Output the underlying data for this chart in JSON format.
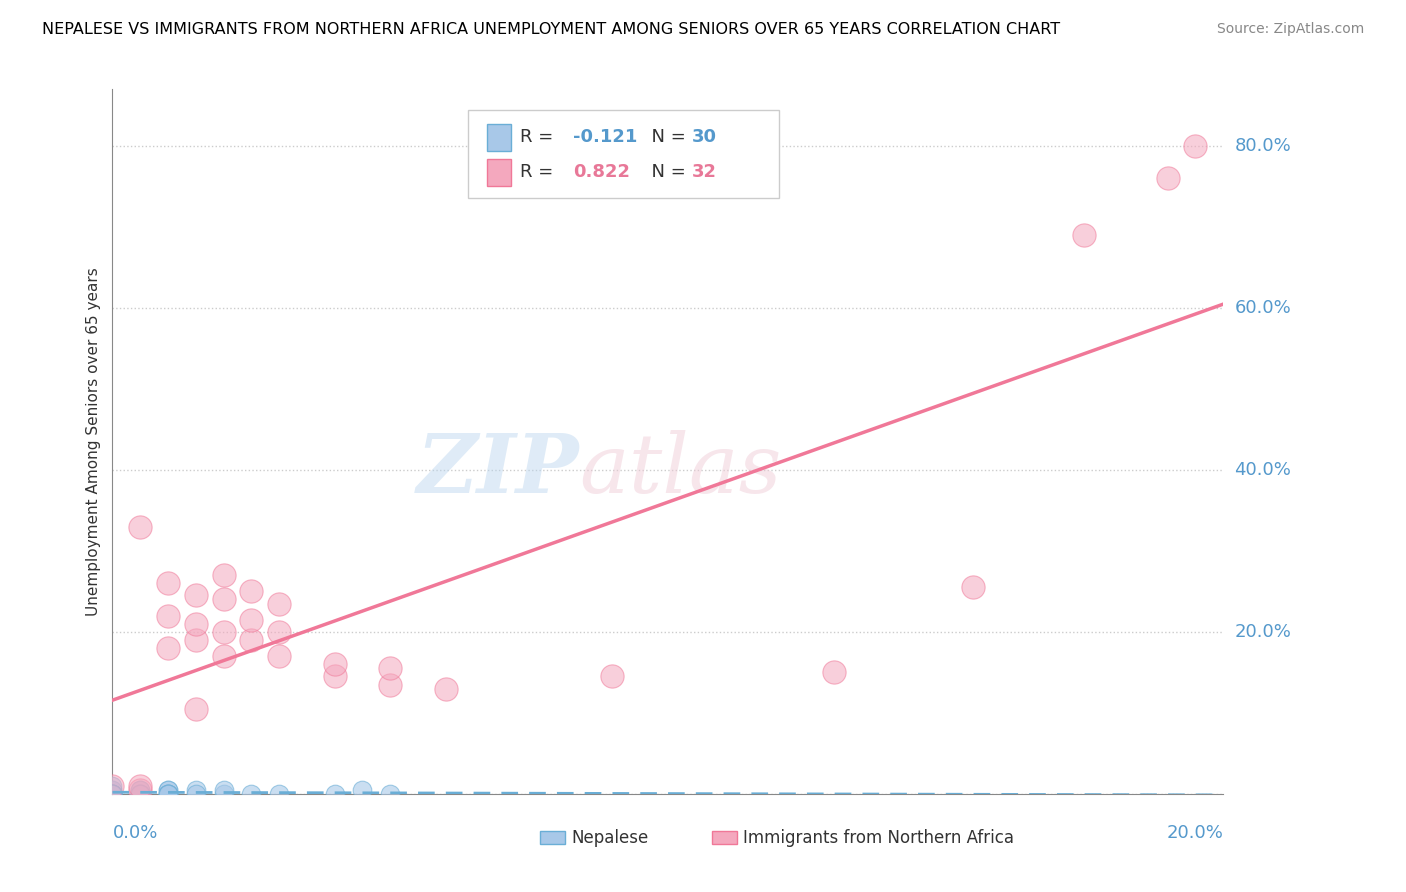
{
  "title": "NEPALESE VS IMMIGRANTS FROM NORTHERN AFRICA UNEMPLOYMENT AMONG SENIORS OVER 65 YEARS CORRELATION CHART",
  "source": "Source: ZipAtlas.com",
  "ylabel": "Unemployment Among Seniors over 65 years",
  "xlim": [
    0.0,
    0.2
  ],
  "ylim": [
    0.0,
    0.87
  ],
  "yticks": [
    0.0,
    0.2,
    0.4,
    0.6,
    0.8
  ],
  "ytick_labels": [
    "",
    "20.0%",
    "40.0%",
    "60.0%",
    "80.0%"
  ],
  "blue_color": "#a8c8e8",
  "pink_color": "#f4a8be",
  "blue_line_color": "#6aaed6",
  "pink_line_color": "#f07898",
  "nepalese_x": [
    0.0,
    0.0,
    0.0,
    0.0,
    0.0,
    0.0,
    0.0,
    0.005,
    0.005,
    0.005,
    0.005,
    0.005,
    0.01,
    0.01,
    0.01,
    0.01,
    0.01,
    0.015,
    0.015,
    0.02,
    0.02,
    0.025,
    0.03,
    0.04,
    0.045,
    0.05,
    0.0,
    0.0,
    0.005,
    0.01
  ],
  "nepalese_y": [
    0.0,
    0.005,
    0.005,
    0.01,
    0.0,
    0.0,
    0.0,
    0.0,
    0.005,
    0.005,
    0.0,
    0.0,
    0.005,
    0.005,
    0.0,
    0.0,
    0.0,
    0.005,
    0.0,
    0.0,
    0.005,
    0.0,
    0.0,
    0.0,
    0.005,
    0.0,
    0.0,
    0.0,
    0.0,
    0.0
  ],
  "africa_x": [
    0.0,
    0.005,
    0.005,
    0.01,
    0.01,
    0.01,
    0.015,
    0.015,
    0.015,
    0.02,
    0.02,
    0.02,
    0.02,
    0.025,
    0.025,
    0.025,
    0.03,
    0.03,
    0.03,
    0.04,
    0.04,
    0.05,
    0.05,
    0.06,
    0.09,
    0.13,
    0.155,
    0.175,
    0.19,
    0.195,
    0.005,
    0.015
  ],
  "africa_y": [
    0.01,
    0.005,
    0.33,
    0.18,
    0.22,
    0.26,
    0.19,
    0.21,
    0.245,
    0.17,
    0.2,
    0.24,
    0.27,
    0.19,
    0.215,
    0.25,
    0.17,
    0.2,
    0.235,
    0.145,
    0.16,
    0.135,
    0.155,
    0.13,
    0.145,
    0.15,
    0.255,
    0.69,
    0.76,
    0.8,
    0.01,
    0.105
  ],
  "r_nepalese": -0.121,
  "n_nepalese": 30,
  "r_africa": 0.822,
  "n_africa": 32
}
